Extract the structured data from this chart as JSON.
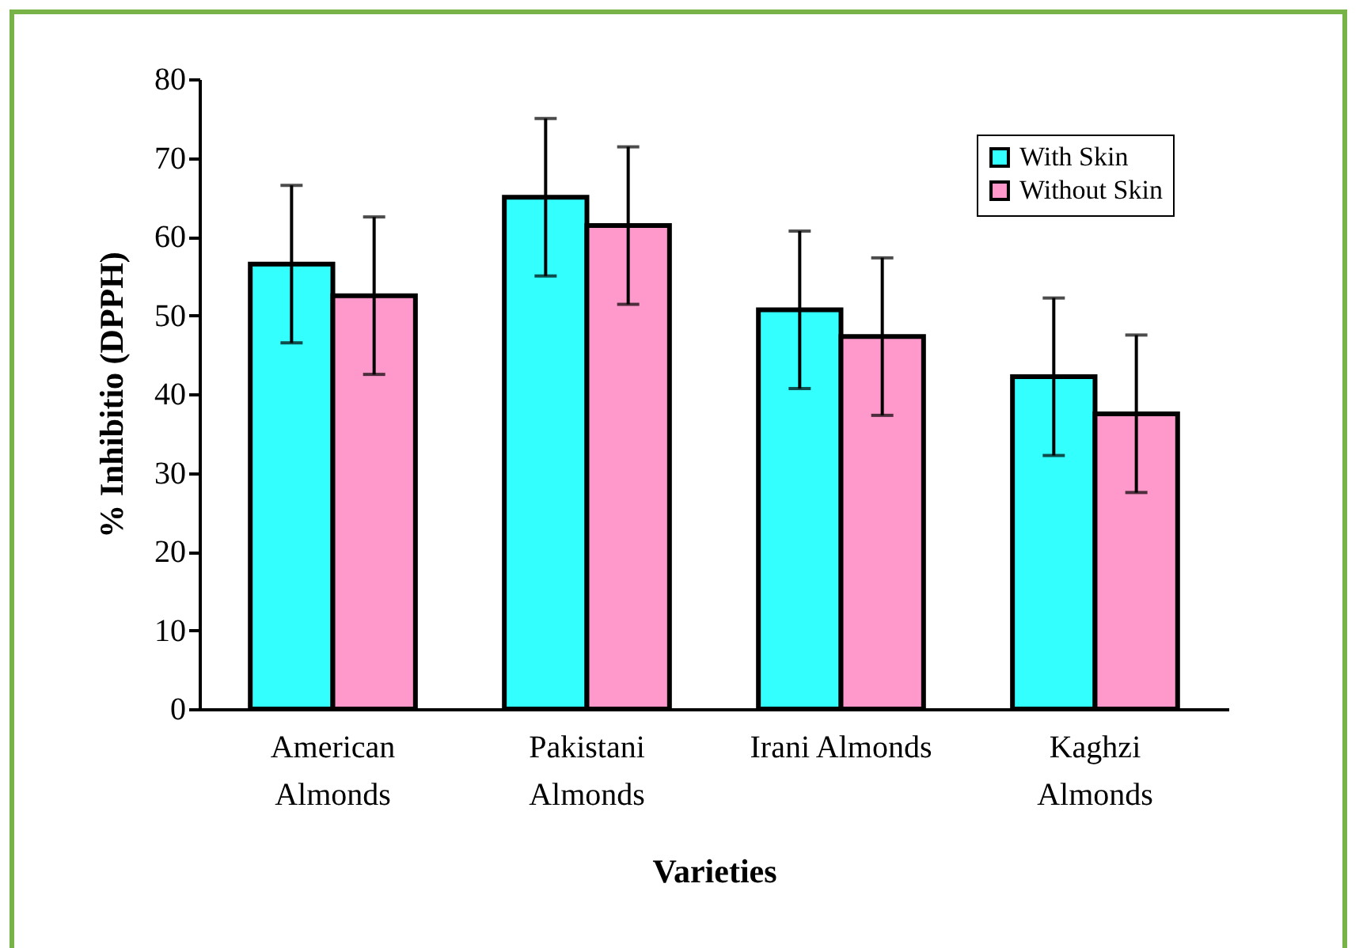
{
  "chart_data": {
    "type": "bar",
    "xlabel": "Varieties",
    "ylabel": "% Inhibitio  (DPPH)",
    "categories": [
      "American Almonds",
      "Pakistani Almonds",
      "Irani Almonds",
      "Kaghzi Almonds"
    ],
    "series": [
      {
        "name": "With Skin",
        "color": "#33ffff",
        "values": [
          56.5,
          65,
          50.7,
          42.2
        ],
        "errors": [
          10,
          10,
          10,
          10
        ]
      },
      {
        "name": "Without Skin",
        "color": "#ff99cc",
        "values": [
          52.5,
          61.4,
          47.3,
          37.5
        ],
        "errors": [
          10,
          10,
          10,
          10
        ]
      }
    ],
    "ylim": [
      0,
      80
    ],
    "yticks": [
      0,
      10,
      20,
      30,
      40,
      50,
      60,
      70,
      80
    ],
    "grid": false,
    "legend": "top right"
  }
}
